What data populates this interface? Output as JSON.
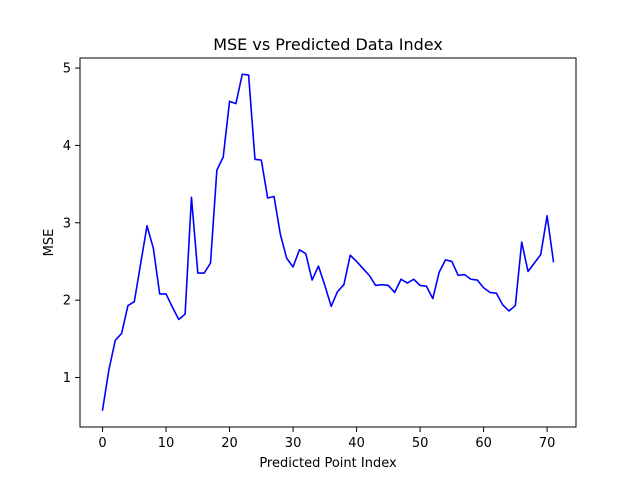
{
  "chart_data": {
    "type": "line",
    "title": "MSE vs Predicted Data Index",
    "xlabel": "Predicted Point Index",
    "ylabel": "MSE",
    "xlim": [
      -3.55,
      74.55
    ],
    "ylim": [
      0.36,
      5.13
    ],
    "xticks": [
      0,
      10,
      20,
      30,
      40,
      50,
      60,
      70
    ],
    "yticks": [
      1,
      2,
      3,
      4,
      5
    ],
    "grid": false,
    "line_color": "#0000ff",
    "series": [
      {
        "x": [
          0,
          1,
          2,
          3,
          4,
          5,
          6,
          7,
          8,
          9,
          10,
          11,
          12,
          13,
          14,
          15,
          16,
          17,
          18,
          19,
          20,
          21,
          22,
          23,
          24,
          25,
          26,
          27,
          28,
          29,
          30,
          31,
          32,
          33,
          34,
          35,
          36,
          37,
          38,
          39,
          40,
          41,
          42,
          43,
          44,
          45,
          46,
          47,
          48,
          49,
          50,
          51,
          52,
          53,
          54,
          55,
          56,
          57,
          58,
          59,
          60,
          61,
          62,
          63,
          64,
          65,
          66,
          67,
          68,
          69,
          70,
          71
        ],
        "values": [
          0.58,
          1.1,
          1.48,
          1.57,
          1.93,
          1.98,
          2.47,
          2.96,
          2.67,
          2.08,
          2.08,
          1.91,
          1.75,
          1.82,
          3.33,
          2.35,
          2.35,
          2.48,
          3.68,
          3.85,
          4.57,
          4.54,
          4.92,
          4.91,
          3.82,
          3.81,
          3.32,
          3.34,
          2.85,
          2.54,
          2.43,
          2.65,
          2.6,
          2.26,
          2.44,
          2.19,
          1.92,
          2.11,
          2.2,
          2.58,
          2.5,
          2.41,
          2.32,
          2.19,
          2.2,
          2.19,
          2.1,
          2.27,
          2.22,
          2.27,
          2.19,
          2.18,
          2.02,
          2.36,
          2.52,
          2.5,
          2.32,
          2.33,
          2.27,
          2.26,
          2.16,
          2.1,
          2.09,
          1.94,
          1.86,
          1.93,
          2.75,
          2.37,
          2.48,
          2.59,
          3.09,
          2.5
        ]
      }
    ]
  }
}
